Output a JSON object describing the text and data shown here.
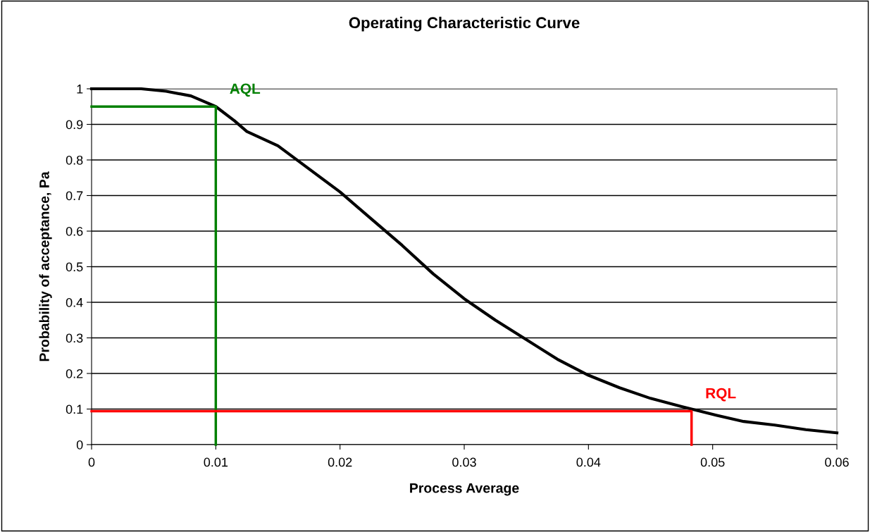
{
  "chart_data": {
    "type": "line",
    "title": "Operating Characteristic Curve",
    "xlabel": "Process Average",
    "ylabel": "Probability of acceptance, Pa",
    "series": [
      {
        "color": "#000000",
        "x": [
          0,
          0.004,
          0.006,
          0.008,
          0.009,
          0.01,
          0.0115,
          0.0125,
          0.015,
          0.0175,
          0.02,
          0.0225,
          0.025,
          0.0275,
          0.03,
          0.0325,
          0.035,
          0.0375,
          0.04,
          0.0425,
          0.045,
          0.0475,
          0.05,
          0.0525,
          0.055,
          0.0575,
          0.06
        ],
        "values": [
          1,
          1,
          0.993,
          0.98,
          0.965,
          0.95,
          0.91,
          0.88,
          0.84,
          0.775,
          0.71,
          0.635,
          0.56,
          0.48,
          0.41,
          0.35,
          0.295,
          0.24,
          0.195,
          0.16,
          0.13,
          0.107,
          0.085,
          0.065,
          0.055,
          0.042,
          0.033
        ]
      },
      {
        "name": "AQL",
        "color": "#008000",
        "x": [
          0,
          0.01,
          0.01
        ],
        "values": [
          0.95,
          0.95,
          0
        ]
      },
      {
        "name": "RQL",
        "color": "#ff0000",
        "x": [
          0,
          0.0483,
          0.0483
        ],
        "values": [
          0.094,
          0.094,
          0
        ]
      }
    ],
    "xlim": [
      0,
      0.06
    ],
    "xticks": [
      0,
      0.01,
      0.02,
      0.03,
      0.04,
      0.05,
      0.06
    ],
    "ylim": [
      0,
      1
    ],
    "yticks": [
      0,
      0.1,
      0.2,
      0.3,
      0.4,
      0.5,
      0.6,
      0.7,
      0.8,
      0.9,
      1
    ],
    "grid": "y",
    "line_style": "solid",
    "marker": "none",
    "legend": false
  }
}
